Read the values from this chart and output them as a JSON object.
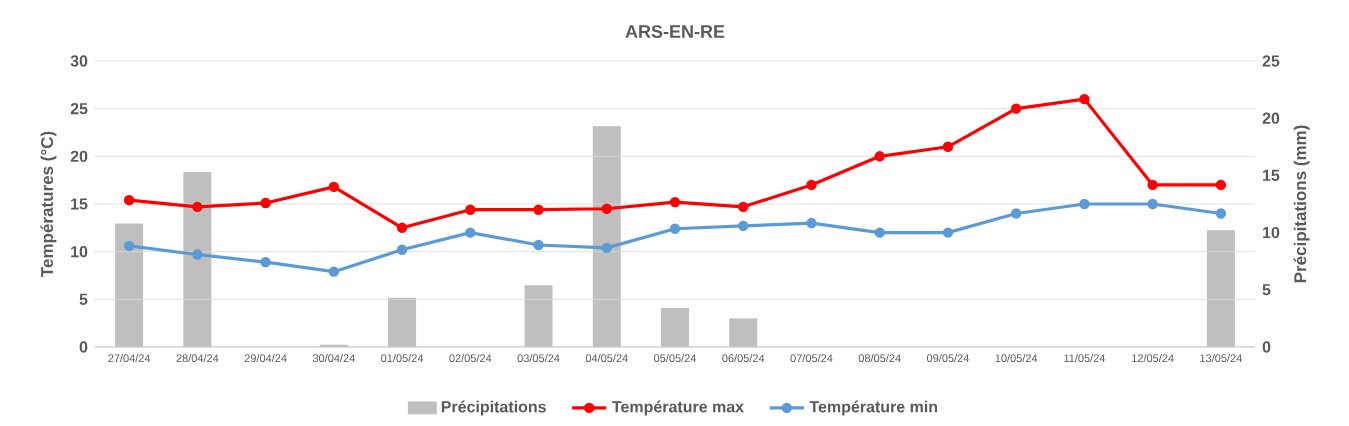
{
  "chart_data": {
    "type": "bar",
    "title": "ARS-EN-RE",
    "ylabel": "Températures (°C)",
    "y2label": "Précipitations (mm)",
    "categories": [
      "27/04/24",
      "28/04/24",
      "29/04/24",
      "30/04/24",
      "01/05/24",
      "02/05/24",
      "03/05/24",
      "04/05/24",
      "05/05/24",
      "06/05/24",
      "07/05/24",
      "08/05/24",
      "09/05/24",
      "10/05/24",
      "11/05/24",
      "12/05/24",
      "13/05/24"
    ],
    "series": [
      {
        "name": "Précipitations",
        "axis": "y2",
        "color": "#bfbfbf",
        "values": [
          10.8,
          15.3,
          0,
          0.2,
          4.3,
          0,
          5.4,
          19.3,
          3.4,
          2.5,
          0,
          0,
          0,
          0,
          0,
          0,
          10.2
        ]
      },
      {
        "name": "Température max",
        "type": "line",
        "color": "#ff0000",
        "values": [
          15.4,
          14.7,
          15.1,
          16.8,
          12.5,
          14.4,
          14.4,
          14.5,
          15.2,
          14.7,
          17,
          20,
          21,
          25,
          26,
          17,
          17
        ]
      },
      {
        "name": "Température min",
        "type": "line",
        "color": "#5b9bd5",
        "values": [
          10.6,
          9.7,
          8.9,
          7.9,
          10.2,
          12,
          10.7,
          10.4,
          12.4,
          12.7,
          13,
          12,
          12,
          14,
          15,
          15,
          14
        ]
      }
    ],
    "ylim": [
      0,
      30
    ],
    "yticks": [
      0,
      5,
      10,
      15,
      20,
      25,
      30
    ],
    "y2lim": [
      0,
      25
    ],
    "y2ticks": [
      0,
      5,
      10,
      15,
      20,
      25
    ],
    "grid": "y",
    "legend": "bottom",
    "marker": "circle"
  }
}
